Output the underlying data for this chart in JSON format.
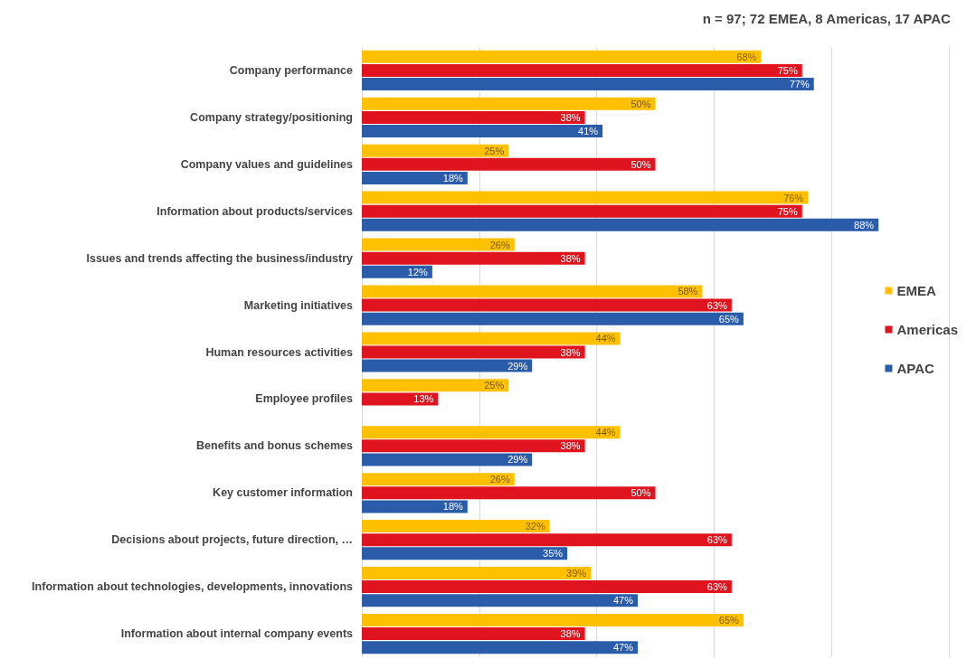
{
  "chart_data": {
    "type": "bar",
    "orientation": "horizontal",
    "subtitle": "n = 97; 72 EMEA, 8 Americas, 17 APAC",
    "categories": [
      "Company performance",
      "Company strategy/positioning",
      "Company values and guidelines",
      "Information about products/services",
      "Issues and trends affecting the business/industry",
      "Marketing initiatives",
      "Human resources activities",
      "Employee profiles",
      "Benefits and bonus schemes",
      "Key customer information",
      "Decisions about projects, future direction, …",
      "Information about technologies, developments, innovations",
      "Information about internal company events"
    ],
    "series": [
      {
        "name": "EMEA",
        "color": "#ffc000",
        "values": [
          68,
          50,
          25,
          76,
          26,
          58,
          44,
          25,
          44,
          26,
          32,
          39,
          65
        ],
        "value_labels": [
          "68%",
          "50%",
          "25%",
          "76%",
          "26%",
          "58%",
          "44%",
          "25%",
          "44%",
          "26%",
          "32%",
          "39%",
          "65%"
        ]
      },
      {
        "name": "Americas",
        "color": "#e0141e",
        "values": [
          75,
          38,
          50,
          75,
          38,
          63,
          38,
          13,
          38,
          50,
          63,
          63,
          38
        ],
        "value_labels": [
          "75%",
          "38%",
          "50%",
          "75%",
          "38%",
          "63%",
          "38%",
          "13%",
          "38%",
          "50%",
          "63%",
          "63%",
          "38%"
        ]
      },
      {
        "name": "APAC",
        "color": "#2a5caa",
        "values": [
          77,
          41,
          18,
          88,
          12,
          65,
          29,
          null,
          29,
          18,
          35,
          47,
          47
        ],
        "value_labels": [
          "77%",
          "41%",
          "18%",
          "88%",
          "12%",
          "65%",
          "29%",
          null,
          "29%",
          "18%",
          "35%",
          "47%",
          "47%"
        ]
      }
    ],
    "grid": "x",
    "legend": "right",
    "tick_labels": "y"
  }
}
